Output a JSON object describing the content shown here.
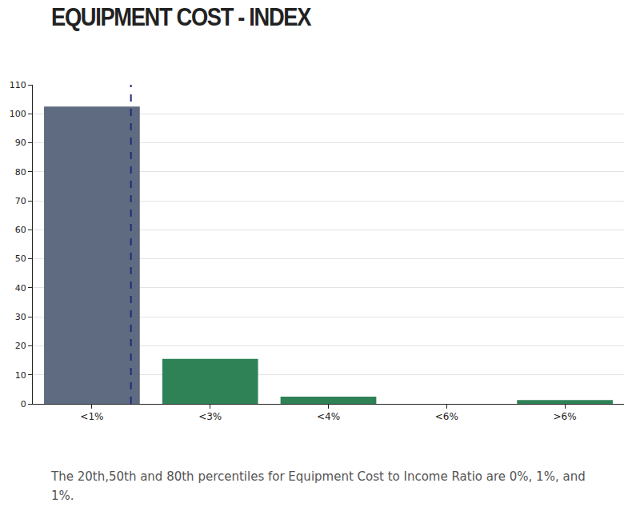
{
  "chart_data": {
    "type": "bar",
    "title": "EQUIPMENT COST - INDEX",
    "categories": [
      "<1%",
      "<3%",
      "<4%",
      "<6%",
      ">6%"
    ],
    "values": [
      102.5,
      15.5,
      2.5,
      0,
      1.3
    ],
    "colors": [
      "#5f6b80",
      "#2e8256",
      "#2e8256",
      "#2e8256",
      "#2e8256"
    ],
    "ylim": [
      0,
      110
    ],
    "yticks": [
      0,
      10,
      20,
      30,
      40,
      50,
      60,
      70,
      80,
      90,
      100,
      110
    ],
    "grid": true,
    "reference_line": {
      "x": 0.33,
      "color": "#1f2a7a",
      "line_style": "dash"
    },
    "caption": "The 20th,50th and 80th percentiles for Equipment Cost to Income Ratio are 0%, 1%, and 1%."
  }
}
